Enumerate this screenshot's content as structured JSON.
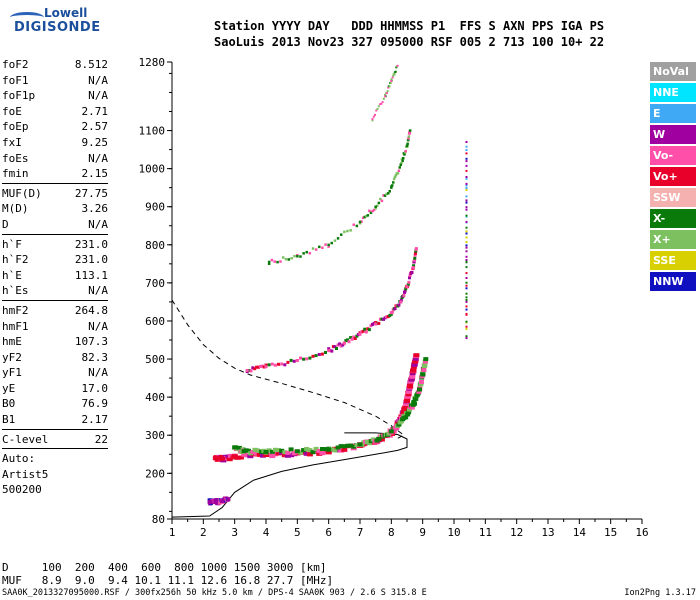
{
  "logo": {
    "line1": "Lowell",
    "line2": "DIGISONDE"
  },
  "header": {
    "row1": "Station YYYY DAY   DDD HHMMSS P1  FFS S AXN PPS IGA PS",
    "row2": "SaoLuis 2013 Nov23 327 095000 RSF 005 2 713 100 10+ 22"
  },
  "params": {
    "group1": [
      {
        "label": "foF2",
        "value": "8.512"
      },
      {
        "label": "foF1",
        "value": "N/A"
      },
      {
        "label": "foF1p",
        "value": "N/A"
      },
      {
        "label": "foE",
        "value": "2.71"
      },
      {
        "label": "foEp",
        "value": "2.57"
      },
      {
        "label": "fxI",
        "value": "9.25"
      },
      {
        "label": "foEs",
        "value": "N/A"
      },
      {
        "label": "fmin",
        "value": "2.15"
      }
    ],
    "group2": [
      {
        "label": "MUF(D)",
        "value": "27.75"
      },
      {
        "label": "M(D)",
        "value": "3.26"
      },
      {
        "label": "D",
        "value": "N/A"
      }
    ],
    "group3": [
      {
        "label": "h`F",
        "value": "231.0"
      },
      {
        "label": "h`F2",
        "value": "231.0"
      },
      {
        "label": "h`E",
        "value": "113.1"
      },
      {
        "label": "h`Es",
        "value": "N/A"
      }
    ],
    "group4": [
      {
        "label": "hmF2",
        "value": "264.8"
      },
      {
        "label": "hmF1",
        "value": "N/A"
      },
      {
        "label": "hmE",
        "value": "107.3"
      },
      {
        "label": "yF2",
        "value": "82.3"
      },
      {
        "label": "yF1",
        "value": "N/A"
      },
      {
        "label": "yE",
        "value": "17.0"
      },
      {
        "label": "B0",
        "value": "76.9"
      },
      {
        "label": "B1",
        "value": "2.17"
      }
    ],
    "group5": [
      {
        "label": "C-level",
        "value": "22"
      }
    ],
    "auto": [
      "Auto:",
      "Artist5",
      "500200"
    ]
  },
  "legend": [
    {
      "label": "NoVal",
      "color": "#a0a0a0"
    },
    {
      "label": "NNE",
      "color": "#00e5ff"
    },
    {
      "label": "E",
      "color": "#3fa9f5"
    },
    {
      "label": "W",
      "color": "#a000a0"
    },
    {
      "label": "Vo-",
      "color": "#ff4fa8"
    },
    {
      "label": "Vo+",
      "color": "#e8002a"
    },
    {
      "label": "SSW",
      "color": "#f5b0b0"
    },
    {
      "label": "X-",
      "color": "#0a7a0a"
    },
    {
      "label": "X+",
      "color": "#7cc060"
    },
    {
      "label": "SSE",
      "color": "#d8d000"
    },
    {
      "label": "NNW",
      "color": "#1010c0"
    }
  ],
  "muf_table": {
    "row1": "D     100  200  400  600  800 1000 1500 3000 [km]",
    "row2": "MUF   8.9  9.0  9.4 10.1 11.1 12.6 16.8 27.7 [MHz]"
  },
  "footer": {
    "left": "SAA0K_2013327095000.RSF / 300fx256h 50 kHz 5.0 km / DPS-4 SAA0K 903 / 2.6 S 315.8 E",
    "right": "Ion2Png 1.3.17"
  },
  "chart_data": {
    "type": "scatter",
    "title": "",
    "xlabel": "",
    "ylabel": "",
    "xlim": [
      1,
      16
    ],
    "ylim": [
      80,
      1280
    ],
    "xticks": [
      1,
      2,
      3,
      4,
      5,
      6,
      7,
      8,
      9,
      10,
      11,
      12,
      13,
      14,
      15,
      16
    ],
    "yticks": [
      80,
      200,
      300,
      400,
      500,
      600,
      700,
      800,
      900,
      1000,
      1100,
      1280
    ],
    "grid": false,
    "series": [
      {
        "color_key": "F2 O-trace main",
        "points": [
          [
            2.4,
            240
          ],
          [
            2.6,
            238
          ],
          [
            3.0,
            245
          ],
          [
            4.0,
            248
          ],
          [
            5.0,
            252
          ],
          [
            6.0,
            258
          ],
          [
            7.0,
            272
          ],
          [
            7.5,
            284
          ],
          [
            8.0,
            305
          ],
          [
            8.2,
            330
          ],
          [
            8.4,
            360
          ],
          [
            8.5,
            390
          ],
          [
            8.6,
            430
          ],
          [
            8.7,
            470
          ],
          [
            8.8,
            510
          ]
        ]
      },
      {
        "color_key": "F2 X-trace",
        "points": [
          [
            3.0,
            268
          ],
          [
            3.3,
            258
          ],
          [
            4.0,
            256
          ],
          [
            5.0,
            258
          ],
          [
            6.0,
            262
          ],
          [
            7.0,
            276
          ],
          [
            7.6,
            290
          ],
          [
            8.0,
            310
          ],
          [
            8.4,
            345
          ],
          [
            8.7,
            380
          ],
          [
            8.9,
            420
          ],
          [
            9.0,
            460
          ],
          [
            9.1,
            500
          ]
        ]
      },
      {
        "color_key": "second hop",
        "points": [
          [
            3.4,
            470
          ],
          [
            4.0,
            480
          ],
          [
            5.0,
            496
          ],
          [
            6.0,
            522
          ],
          [
            6.5,
            542
          ],
          [
            7.0,
            565
          ],
          [
            7.5,
            592
          ],
          [
            8.0,
            622
          ],
          [
            8.3,
            650
          ],
          [
            8.5,
            690
          ],
          [
            8.7,
            740
          ],
          [
            8.8,
            790
          ]
        ]
      },
      {
        "color_key": "third hop",
        "points": [
          [
            4.1,
            755
          ],
          [
            5.0,
            770
          ],
          [
            6.0,
            800
          ],
          [
            7.0,
            860
          ],
          [
            7.5,
            900
          ],
          [
            8.0,
            950
          ],
          [
            8.3,
            1010
          ],
          [
            8.5,
            1060
          ],
          [
            8.6,
            1100
          ]
        ]
      },
      {
        "color_key": "fourth hop",
        "points": [
          [
            7.4,
            1130
          ],
          [
            7.8,
            1190
          ],
          [
            8.0,
            1230
          ],
          [
            8.2,
            1270
          ]
        ]
      },
      {
        "color_key": "E trace",
        "points": [
          [
            2.2,
            124
          ],
          [
            2.4,
            125
          ],
          [
            2.6,
            127
          ],
          [
            2.8,
            132
          ]
        ]
      },
      {
        "color_key": "vertical column",
        "points": [
          [
            10.4,
            555
          ],
          [
            10.4,
            650
          ],
          [
            10.4,
            760
          ],
          [
            10.4,
            860
          ],
          [
            10.4,
            960
          ],
          [
            10.4,
            1070
          ]
        ]
      }
    ],
    "profile_solid": [
      [
        1,
        85
      ],
      [
        2.2,
        88
      ],
      [
        2.6,
        110
      ],
      [
        3.0,
        150
      ],
      [
        3.6,
        182
      ],
      [
        4.5,
        205
      ],
      [
        5.5,
        222
      ],
      [
        6.5,
        236
      ],
      [
        7.5,
        250
      ],
      [
        8.2,
        260
      ],
      [
        8.5,
        268
      ],
      [
        8.5,
        290
      ],
      [
        8.2,
        302
      ],
      [
        7.5,
        306
      ],
      [
        6.5,
        306
      ]
    ],
    "profile_dashed": [
      [
        1,
        655
      ],
      [
        1.5,
        590
      ],
      [
        2.0,
        538
      ],
      [
        2.5,
        502
      ],
      [
        3.0,
        476
      ],
      [
        3.5,
        458
      ],
      [
        4.5,
        436
      ],
      [
        5.5,
        412
      ],
      [
        6.5,
        386
      ],
      [
        7.5,
        350
      ],
      [
        8.0,
        325
      ],
      [
        8.4,
        300
      ],
      [
        8.2,
        292
      ]
    ]
  }
}
